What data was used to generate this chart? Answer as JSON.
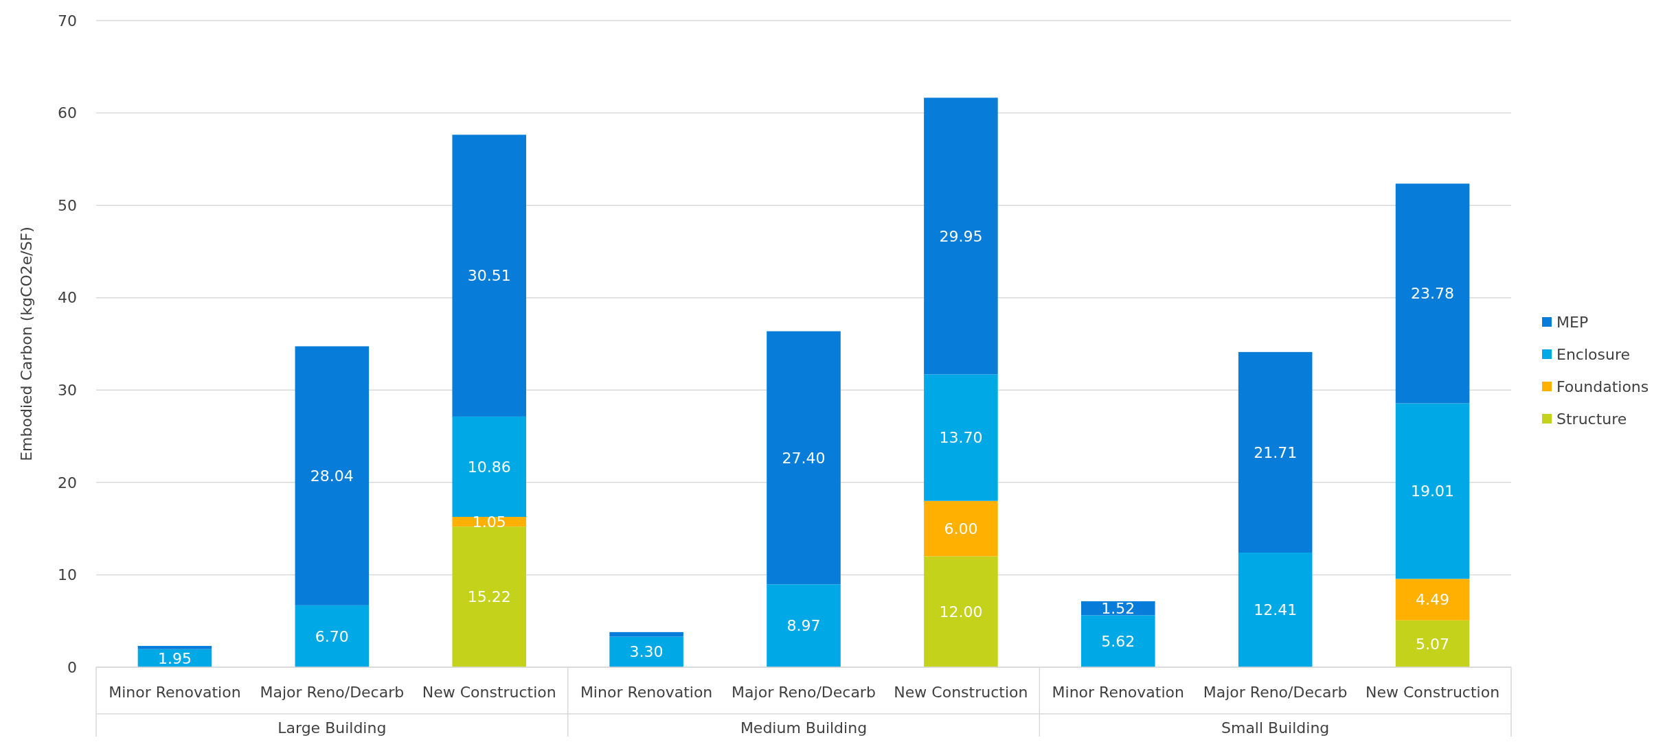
{
  "chart_data": {
    "type": "bar",
    "stacked": true,
    "ylabel": "Embodied Carbon (kgCO2e/SF)",
    "categories": [
      "Minor Renovation",
      "Major Reno/Decarb",
      "New Construction",
      "Minor Renovation",
      "Major Reno/Decarb",
      "New Construction",
      "Minor Renovation",
      "Major Reno/Decarb",
      "New Construction"
    ],
    "annotations": [
      "Large Building",
      "Medium Building",
      "Small Building"
    ],
    "series": [
      {
        "name": "Structure",
        "color": "#c4d21c",
        "values": [
          null,
          null,
          15.22,
          null,
          null,
          12.0,
          null,
          null,
          5.07
        ],
        "value_labels": [
          null,
          null,
          "15.22",
          null,
          null,
          "12.00",
          null,
          null,
          "5.07"
        ]
      },
      {
        "name": "Foundations",
        "color": "#ffb000",
        "values": [
          null,
          null,
          1.05,
          null,
          null,
          6.0,
          null,
          null,
          4.49
        ],
        "value_labels": [
          null,
          null,
          "1.05",
          null,
          null,
          "6.00",
          null,
          null,
          "4.49"
        ]
      },
      {
        "name": "Enclosure",
        "color": "#00a9e6",
        "values": [
          1.95,
          6.7,
          10.86,
          3.3,
          8.97,
          13.7,
          5.62,
          12.41,
          19.01
        ],
        "value_labels": [
          "1.95",
          "6.70",
          "10.86",
          "3.30",
          "8.97",
          "13.70",
          "5.62",
          "12.41",
          "19.01"
        ]
      },
      {
        "name": "MEP",
        "color": "#077dd9",
        "values": [
          0.35,
          28.04,
          30.51,
          0.5,
          27.4,
          29.95,
          1.52,
          21.71,
          23.78
        ],
        "value_labels": [
          null,
          "28.04",
          "30.51",
          null,
          "27.40",
          "29.95",
          "1.52",
          "21.71",
          "23.78"
        ]
      }
    ],
    "ylim": [
      0,
      70
    ],
    "yticks": [
      0,
      10,
      20,
      30,
      40,
      50,
      60,
      70
    ],
    "grid": "y",
    "legend": "right"
  }
}
